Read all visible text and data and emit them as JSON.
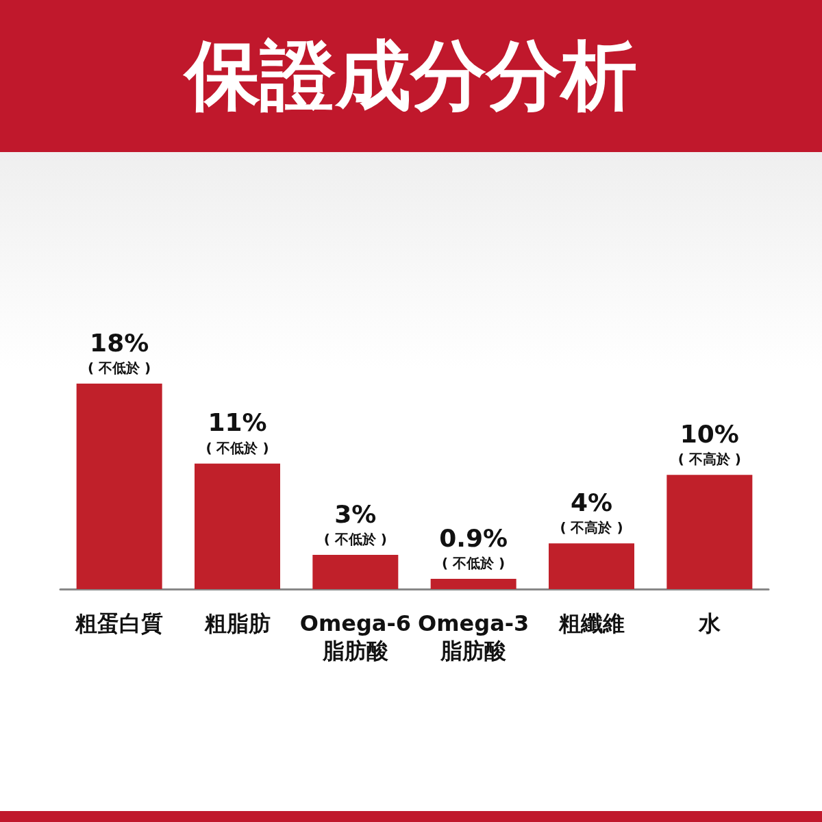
{
  "chart_data": {
    "type": "bar",
    "title": "保證成分分析",
    "categories": [
      "粗蛋白質",
      "粗脂肪",
      "Omega-6\n脂肪酸",
      "Omega-3\n脂肪酸",
      "粗纖維",
      "水"
    ],
    "values": [
      18,
      11,
      3,
      0.9,
      4,
      10
    ],
    "value_labels": [
      "18%\n( 不低於 )",
      "11%\n( 不低於 )",
      "3%\n( 不低於 )",
      "0.9%\n( 不低於 )",
      "4%\n( 不高於 )",
      "10%\n( 不高於 )"
    ],
    "color": "#c0202a"
  }
}
